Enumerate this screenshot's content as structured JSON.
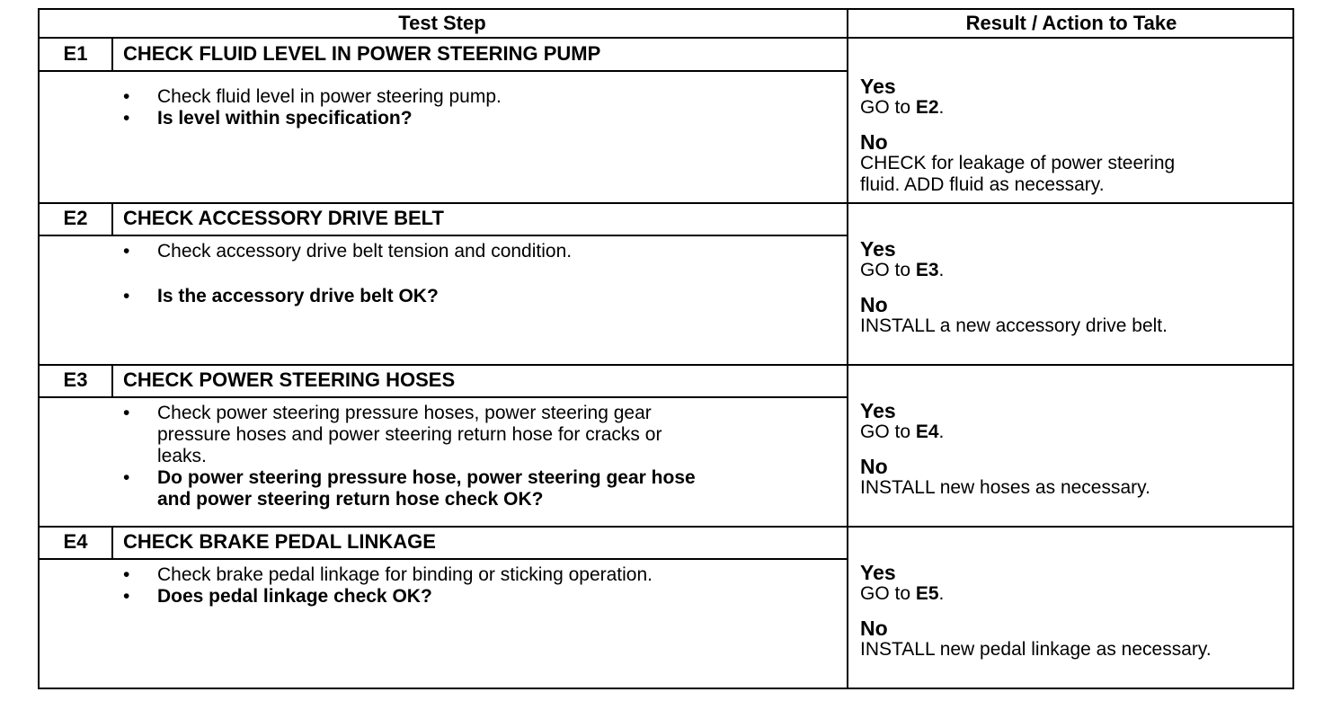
{
  "header": {
    "test_step": "Test Step",
    "result": "Result / Action to Take"
  },
  "steps": [
    {
      "id": "E1",
      "title": "CHECK FLUID LEVEL IN POWER STEERING PUMP",
      "bullets": [
        {
          "bold": false,
          "lines": [
            "Check fluid level in power steering pump."
          ]
        },
        {
          "bold": true,
          "lines": [
            "Is level within specification?"
          ]
        }
      ],
      "result": {
        "yes_label": "Yes",
        "yes_prefix": "GO to ",
        "yes_target": "E2",
        "yes_suffix": ".",
        "no_label": "No",
        "no_lines": [
          "CHECK for leakage of power steering",
          "fluid. ADD fluid as necessary."
        ]
      }
    },
    {
      "id": "E2",
      "title": "CHECK ACCESSORY DRIVE BELT",
      "bullets": [
        {
          "bold": false,
          "lines": [
            "Check accessory drive belt tension and condition."
          ]
        },
        {
          "bold": true,
          "lines": [
            "Is the accessory drive belt OK?"
          ]
        }
      ],
      "result": {
        "yes_label": "Yes",
        "yes_prefix": "GO to ",
        "yes_target": "E3",
        "yes_suffix": ".",
        "no_label": "No",
        "no_lines": [
          "INSTALL a new accessory drive belt."
        ]
      }
    },
    {
      "id": "E3",
      "title": "CHECK POWER STEERING HOSES",
      "bullets": [
        {
          "bold": false,
          "lines": [
            "Check power steering pressure hoses, power steering gear",
            "pressure hoses and power steering return hose for cracks or",
            "leaks."
          ]
        },
        {
          "bold": true,
          "lines": [
            "Do power steering pressure hose, power steering gear hose",
            "and power steering return hose check OK?"
          ]
        }
      ],
      "result": {
        "yes_label": "Yes",
        "yes_prefix": "GO to ",
        "yes_target": "E4",
        "yes_suffix": ".",
        "no_label": "No",
        "no_lines": [
          "INSTALL new hoses as necessary."
        ]
      }
    },
    {
      "id": "E4",
      "title": "CHECK BRAKE PEDAL LINKAGE",
      "bullets": [
        {
          "bold": false,
          "lines": [
            "Check brake pedal linkage for binding or sticking operation."
          ]
        },
        {
          "bold": true,
          "lines": [
            "Does pedal linkage check OK?"
          ]
        }
      ],
      "result": {
        "yes_label": "Yes",
        "yes_prefix": "GO to ",
        "yes_target": "E5",
        "yes_suffix": ".",
        "no_label": "No",
        "no_lines": [
          "INSTALL new pedal linkage as necessary."
        ]
      }
    }
  ]
}
